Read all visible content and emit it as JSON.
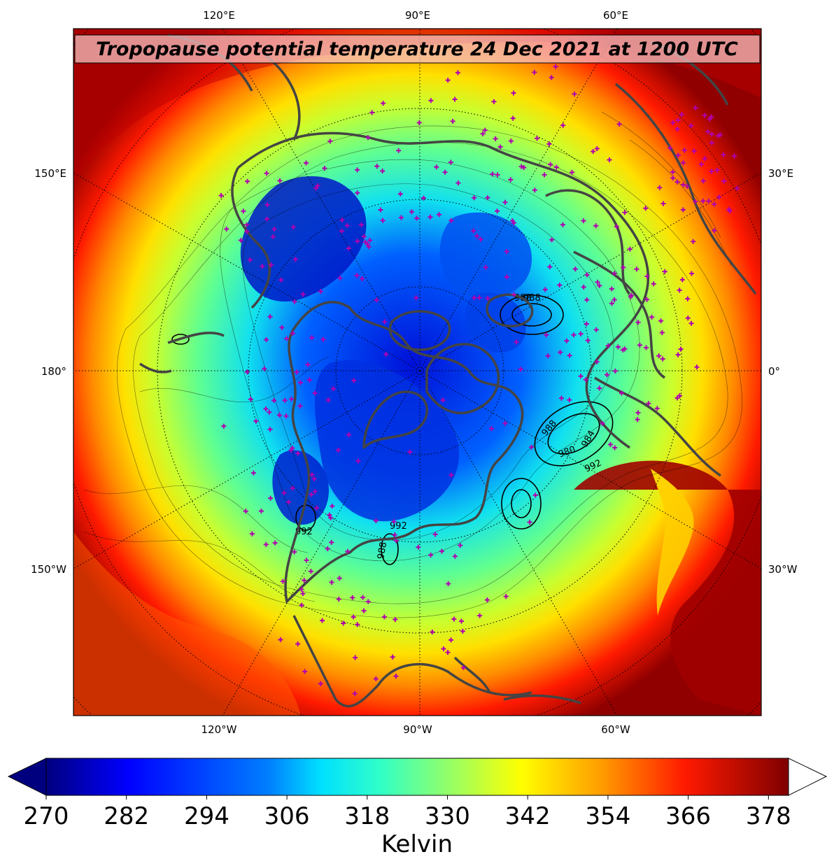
{
  "title": "Tropopause potential temperature 24 Dec 2021 at 1200 UTC",
  "map": {
    "projection": "north-polar-stereographic",
    "top_longitude_labels": [
      "120°E",
      "90°E",
      "60°E"
    ],
    "bottom_longitude_labels": [
      "120°W",
      "90°W",
      "60°W"
    ],
    "left_longitude_labels": [
      "150°E",
      "180°",
      "150°W"
    ],
    "right_longitude_labels": [
      "30°E",
      "0°",
      "30°W"
    ],
    "station_marker": "magenta-plus",
    "station_color": "#b000b0",
    "coastline_color": "#444444",
    "pressure_contour_labels": [
      "988",
      "980",
      "984",
      "992",
      "988",
      "992",
      "992",
      "988",
      "988"
    ]
  },
  "colorbar": {
    "label": "Kelvin",
    "ticks": [
      "270",
      "282",
      "294",
      "306",
      "318",
      "330",
      "342",
      "354",
      "366",
      "378"
    ],
    "min": 270,
    "max": 381,
    "extend": "both",
    "colors": [
      "#00007f",
      "#0000ff",
      "#007fff",
      "#00ffff",
      "#7fff7f",
      "#ffff00",
      "#ff7f00",
      "#ff0000",
      "#7f0000"
    ]
  }
}
